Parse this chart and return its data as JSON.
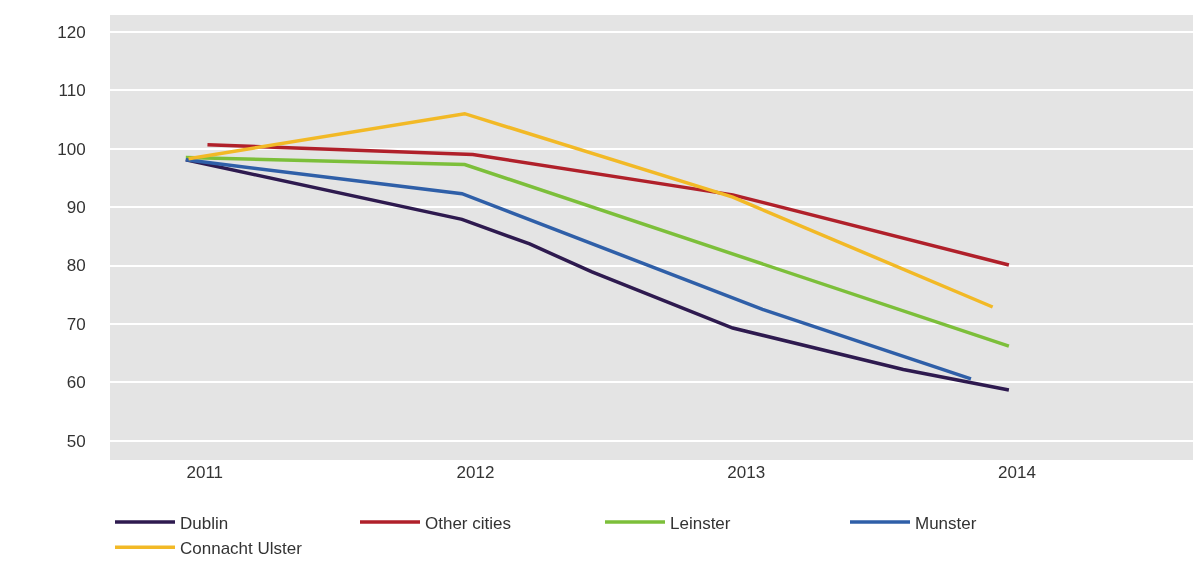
{
  "chart_data": {
    "type": "line",
    "xlim": [
      2010.65,
      2014.65
    ],
    "xticks": [
      2011,
      2012,
      2013,
      2014
    ],
    "ylim": [
      46.7,
      122.9
    ],
    "yticks": [
      50,
      60,
      70,
      80,
      90,
      100,
      110,
      120
    ],
    "grid": "y",
    "legend": "bottom",
    "marker": "none",
    "line_style": "solid",
    "series": [
      {
        "name": "Dublin",
        "color": "#2e1a4f",
        "x": [
          2010.93,
          2011.95,
          2012.2,
          2012.43,
          2012.95,
          2013.58,
          2013.97
        ],
        "values": [
          98.1,
          87.9,
          83.7,
          78.9,
          69.3,
          62.2,
          58.7
        ]
      },
      {
        "name": "Other cities",
        "color": "#b0202a",
        "x": [
          2011.01,
          2011.99,
          2012.95,
          2013.97
        ],
        "values": [
          100.7,
          99.0,
          92.1,
          80.1
        ]
      },
      {
        "name": "Leinster",
        "color": "#7cbf3a",
        "x": [
          2010.93,
          2011.96,
          2013.97
        ],
        "values": [
          98.5,
          97.3,
          66.2
        ]
      },
      {
        "name": "Munster",
        "color": "#2f5fa8",
        "x": [
          2010.93,
          2011.95,
          2013.06,
          2013.83
        ],
        "values": [
          98.1,
          92.3,
          72.5,
          60.6
        ]
      },
      {
        "name": "Connacht Ulster",
        "color": "#f2b926",
        "x": [
          2010.94,
          2011.96,
          2012.95,
          2013.91
        ],
        "values": [
          98.3,
          106.0,
          91.7,
          72.9
        ]
      }
    ]
  }
}
